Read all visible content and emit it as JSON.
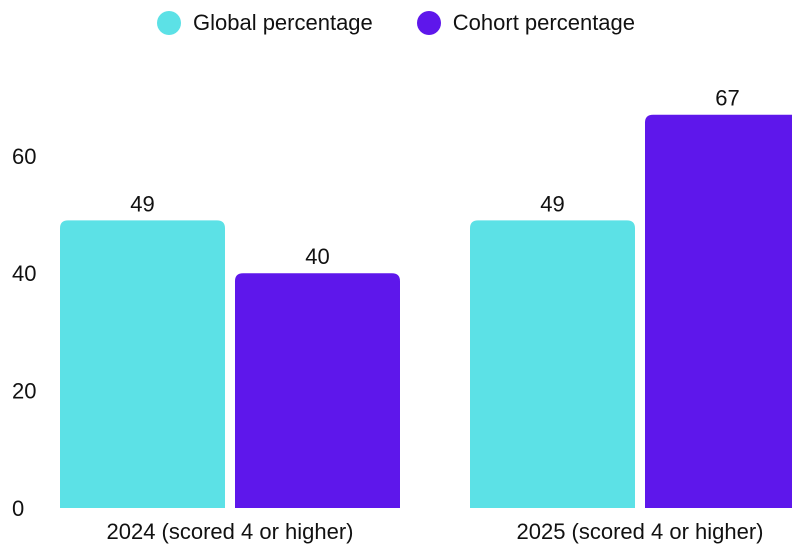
{
  "chart_data": {
    "type": "bar",
    "categories": [
      "2024 (scored 4 or higher)",
      "2025 (scored 4 or higher)"
    ],
    "series": [
      {
        "name": "Global percentage",
        "values": [
          49,
          49
        ],
        "color": "#5CE1E6"
      },
      {
        "name": "Cohort percentage",
        "values": [
          40,
          67
        ],
        "color": "#5E17EB"
      }
    ],
    "yticks": [
      0,
      20,
      40,
      60
    ],
    "ylim": [
      0,
      68
    ],
    "grid": false,
    "legend_position": "top-center",
    "title": "",
    "xlabel": "",
    "ylabel": ""
  }
}
